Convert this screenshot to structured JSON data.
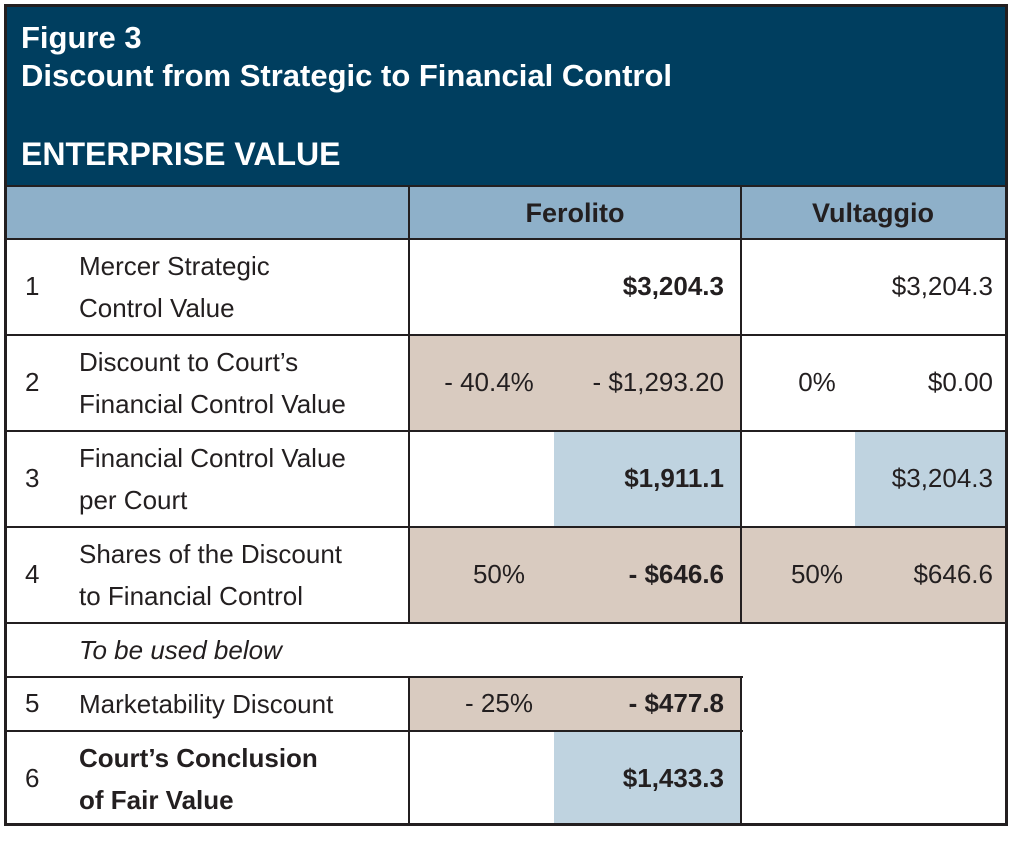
{
  "header": {
    "figure": "Figure 3",
    "title": "Discount from Strategic to Financial Control",
    "subtitle": "ENTERPRISE VALUE"
  },
  "columns": {
    "ferolito": "Ferolito",
    "vultaggio": "Vultaggio"
  },
  "rows": [
    {
      "num": "1",
      "label1": "Mercer Strategic",
      "label2": "Control Value",
      "f_pct": "",
      "f_val": "$3,204.3",
      "v_pct": "",
      "v_val": "$3,204.3"
    },
    {
      "num": "2",
      "label1": "Discount to Court’s",
      "label2": "Financial Control Value",
      "f_pct": "- 40.4%",
      "f_val": "- $1,293.20",
      "v_pct": "0%",
      "v_val": "$0.00"
    },
    {
      "num": "3",
      "label1": "Financial Control Value",
      "label2": "per Court",
      "f_pct": "",
      "f_val": "$1,911.1",
      "v_pct": "",
      "v_val": "$3,204.3"
    },
    {
      "num": "4",
      "label1": "Shares of the Discount",
      "label2": "to Financial Control",
      "f_pct": "50%",
      "f_val": "- $646.6",
      "v_pct": "50%",
      "v_val": "$646.6"
    },
    {
      "note": "To be used below"
    },
    {
      "num": "5",
      "label1": "Marketability Discount",
      "f_pct": "- 25%",
      "f_val": "- $477.8"
    },
    {
      "num": "6",
      "label1": "Court’s Conclusion",
      "label2": "of Fair Value",
      "f_pct": "",
      "f_val": "$1,433.3"
    }
  ],
  "colors": {
    "header_bg": "#003e5f",
    "column_header_bg": "#8eb0c9",
    "tan_fill": "#d9cbc0",
    "blue_fill": "#bfd3e0"
  }
}
